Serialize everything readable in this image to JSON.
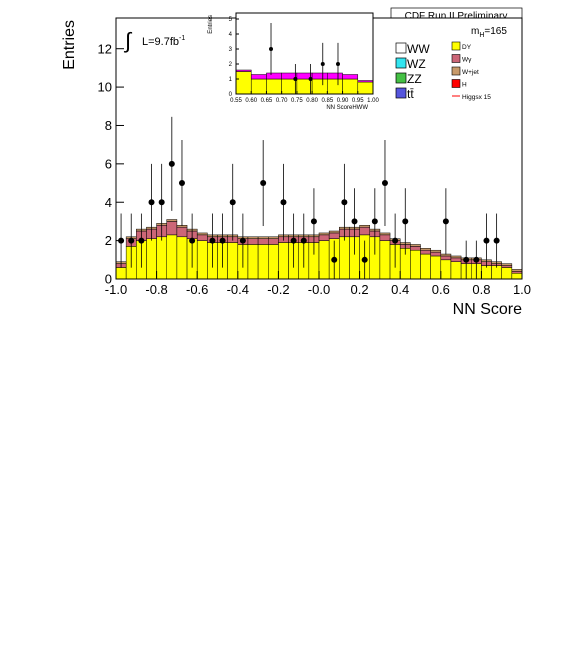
{
  "chart_data": [
    {
      "type": "histogram",
      "title": "CDF Run II Preliminary",
      "xlabel": "NN Score",
      "ylabel": "Entries",
      "lumi": [
        "L=9.7fb",
        "-1"
      ],
      "mass": [
        "m",
        "H",
        "=165"
      ],
      "bins": [
        -1.0,
        -0.95,
        -0.9,
        -0.85,
        -0.8,
        -0.75,
        -0.7,
        -0.65,
        -0.6,
        -0.55,
        -0.5,
        -0.45,
        -0.4,
        -0.35,
        -0.3,
        -0.25,
        -0.2,
        -0.15,
        -0.1,
        -0.05,
        0.0,
        0.05,
        0.1,
        0.15,
        0.2,
        0.25,
        0.3,
        0.35,
        0.4,
        0.45,
        0.5,
        0.55,
        0.6,
        0.65,
        0.7,
        0.75,
        0.8,
        0.85,
        0.9,
        0.95,
        1.0
      ],
      "xlim": [
        -1.0,
        1.0
      ],
      "ylim": [
        0,
        13.6
      ],
      "xticks": [
        {
          "value": -1.0,
          "label": "-1.0"
        },
        {
          "value": -0.8,
          "label": "-0.8"
        },
        {
          "value": -0.6,
          "label": "-0.6"
        },
        {
          "value": -0.4,
          "label": "-0.4"
        },
        {
          "value": -0.2,
          "label": "-0.2"
        },
        {
          "value": 0.0,
          "label": "-0.0"
        },
        {
          "value": 0.2,
          "label": "0.2"
        },
        {
          "value": 0.4,
          "label": "0.4"
        },
        {
          "value": 0.6,
          "label": "0.6"
        },
        {
          "value": 0.8,
          "label": "0.8"
        },
        {
          "value": 1.0,
          "label": "1.0"
        }
      ],
      "yticks": [
        0,
        2,
        4,
        6,
        8,
        10,
        12
      ],
      "series": [
        {
          "name": "WW",
          "color": "#ffffff"
        },
        {
          "name": "WZ",
          "color": "#33e5f0"
        },
        {
          "name": "ZZ",
          "color": "#44c044"
        },
        {
          "name": "tt̄",
          "color": "#5555dd"
        },
        {
          "name": "DY",
          "color": "#ffff00",
          "values": [
            0.6,
            1.7,
            2.0,
            2.1,
            2.2,
            2.3,
            2.2,
            2.1,
            2.0,
            1.9,
            1.9,
            1.9,
            1.8,
            1.8,
            1.8,
            1.8,
            1.9,
            1.9,
            1.9,
            1.9,
            2.0,
            2.1,
            2.2,
            2.2,
            2.3,
            2.2,
            2.0,
            1.8,
            1.6,
            1.5,
            1.3,
            1.2,
            1.0,
            0.9,
            0.8,
            0.8,
            0.7,
            0.7,
            0.6,
            0.3
          ]
        },
        {
          "name": "Wγ",
          "color": "#cc6677",
          "values": [
            0.2,
            0.4,
            0.5,
            0.5,
            0.6,
            0.7,
            0.5,
            0.4,
            0.3,
            0.3,
            0.3,
            0.3,
            0.3,
            0.3,
            0.3,
            0.3,
            0.3,
            0.3,
            0.3,
            0.3,
            0.3,
            0.3,
            0.4,
            0.4,
            0.4,
            0.3,
            0.3,
            0.2,
            0.2,
            0.2,
            0.2,
            0.2,
            0.2,
            0.2,
            0.2,
            0.2,
            0.2,
            0.1,
            0.1,
            0.1
          ]
        },
        {
          "name": "W+jet",
          "color": "#c89a6a",
          "values": [
            0.1,
            0.1,
            0.1,
            0.1,
            0.1,
            0.1,
            0.1,
            0.1,
            0.1,
            0.1,
            0.1,
            0.1,
            0.1,
            0.1,
            0.1,
            0.1,
            0.1,
            0.1,
            0.1,
            0.1,
            0.1,
            0.1,
            0.1,
            0.1,
            0.1,
            0.1,
            0.1,
            0.1,
            0.1,
            0.1,
            0.1,
            0.1,
            0.1,
            0.1,
            0.1,
            0.1,
            0.1,
            0.1,
            0.1,
            0.1
          ]
        },
        {
          "name": "H",
          "color": "#ff0000"
        },
        {
          "name": "Higgsx 15",
          "color": "#ff0000",
          "style": "line"
        }
      ],
      "points": {
        "x": [
          -0.975,
          -0.925,
          -0.875,
          -0.825,
          -0.775,
          -0.725,
          -0.675,
          -0.625,
          -0.525,
          -0.475,
          -0.425,
          -0.375,
          -0.275,
          -0.175,
          -0.125,
          -0.075,
          -0.025,
          0.075,
          0.125,
          0.175,
          0.225,
          0.275,
          0.325,
          0.375,
          0.425,
          0.625,
          0.725,
          0.775,
          0.825,
          0.875
        ],
        "values": [
          2,
          2,
          2,
          4,
          4,
          6,
          5,
          2,
          2,
          2,
          4,
          2,
          5,
          4,
          2,
          2,
          3,
          1,
          4,
          3,
          1,
          3,
          5,
          2,
          3,
          3,
          1,
          1,
          2,
          2
        ],
        "errors": [
          1.41,
          1.41,
          1.41,
          2,
          2,
          2.45,
          2.24,
          1.41,
          1.41,
          1.41,
          2,
          1.41,
          2.24,
          2,
          1.41,
          1.41,
          1.73,
          1,
          2,
          1.73,
          1,
          1.73,
          2.24,
          1.41,
          1.73,
          1.73,
          1,
          1,
          1.41,
          1.41
        ]
      }
    },
    {
      "type": "histogram",
      "xlabel": "NN ScoreHWW",
      "ylabel": "Entries",
      "bins": [
        0.55,
        0.6,
        0.65,
        0.7,
        0.75,
        0.8,
        0.85,
        0.9,
        0.95,
        1.0
      ],
      "xlim": [
        0.55,
        1.0
      ],
      "ylim": [
        0,
        5.4
      ],
      "xticks": [
        {
          "value": 0.55,
          "label": "0.55"
        },
        {
          "value": 0.6,
          "label": "0.60"
        },
        {
          "value": 0.65,
          "label": "0.65"
        },
        {
          "value": 0.7,
          "label": "0.70"
        },
        {
          "value": 0.75,
          "label": "0.75"
        },
        {
          "value": 0.8,
          "label": "0.80"
        },
        {
          "value": 0.85,
          "label": "0.85"
        },
        {
          "value": 0.9,
          "label": "0.90"
        },
        {
          "value": 0.95,
          "label": "0.95"
        },
        {
          "value": 1.0,
          "label": "1.00"
        }
      ],
      "yticks": [
        0,
        1,
        2,
        3,
        4,
        5
      ],
      "series": [
        {
          "color": "#ffff00",
          "values": [
            1.5,
            1.0,
            1.0,
            1.0,
            1.0,
            1.0,
            1.0,
            1.0,
            0.8
          ]
        },
        {
          "color": "#ff00ff",
          "values": [
            0.1,
            0.3,
            0.4,
            0.4,
            0.4,
            0.4,
            0.4,
            0.3,
            0.1
          ]
        }
      ],
      "points": {
        "x": [
          0.665,
          0.745,
          0.795,
          0.835,
          0.885
        ],
        "values": [
          3,
          1,
          1,
          2,
          2
        ],
        "errors": [
          1.73,
          1,
          1,
          1.41,
          1.41
        ]
      }
    }
  ]
}
